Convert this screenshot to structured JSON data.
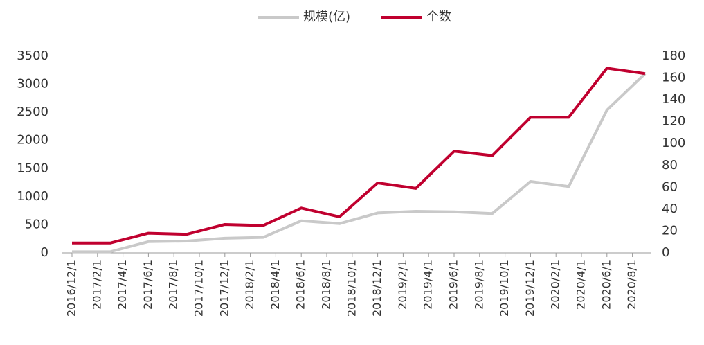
{
  "chart_data": {
    "type": "line",
    "x": [
      "2016/12/1",
      "2017/3/1",
      "2017/6/1",
      "2017/9/1",
      "2017/12/1",
      "2018/3/1",
      "2018/6/1",
      "2018/9/1",
      "2018/12/1",
      "2019/3/1",
      "2019/6/1",
      "2019/9/1",
      "2019/12/1",
      "2020/3/1",
      "2020/6/1",
      "2020/9/1"
    ],
    "series": [
      {
        "name": "规模(亿)",
        "color": "#c9c9c9",
        "values": [
          20,
          20,
          200,
          210,
          260,
          275,
          570,
          520,
          710,
          740,
          730,
          700,
          1270,
          1180,
          2540,
          3190
        ]
      },
      {
        "name": "个数",
        "color": "#c0002f",
        "axis": "y2",
        "values": [
          9,
          9,
          18,
          17,
          26,
          25,
          41,
          33,
          64,
          59,
          93,
          89,
          124,
          124,
          169,
          164
        ]
      }
    ],
    "xlim": [
      "2016/12/1",
      "2020/9/1"
    ],
    "xticks": [
      "2016/12/1",
      "2017/2/1",
      "2017/4/1",
      "2017/6/1",
      "2017/8/1",
      "2017/10/1",
      "2017/12/1",
      "2018/2/1",
      "2018/4/1",
      "2018/6/1",
      "2018/8/1",
      "2018/10/1",
      "2018/12/1",
      "2019/2/1",
      "2019/4/1",
      "2019/6/1",
      "2019/8/1",
      "2019/10/1",
      "2019/12/1",
      "2020/2/1",
      "2020/4/1",
      "2020/6/1",
      "2020/8/1"
    ],
    "ylim": [
      0,
      3500
    ],
    "yticks": [
      0,
      500,
      1000,
      1500,
      2000,
      2500,
      3000,
      3500
    ],
    "y2lim": [
      0,
      180
    ],
    "y2ticks": [
      0,
      20,
      40,
      60,
      80,
      100,
      120,
      140,
      160,
      180
    ]
  }
}
